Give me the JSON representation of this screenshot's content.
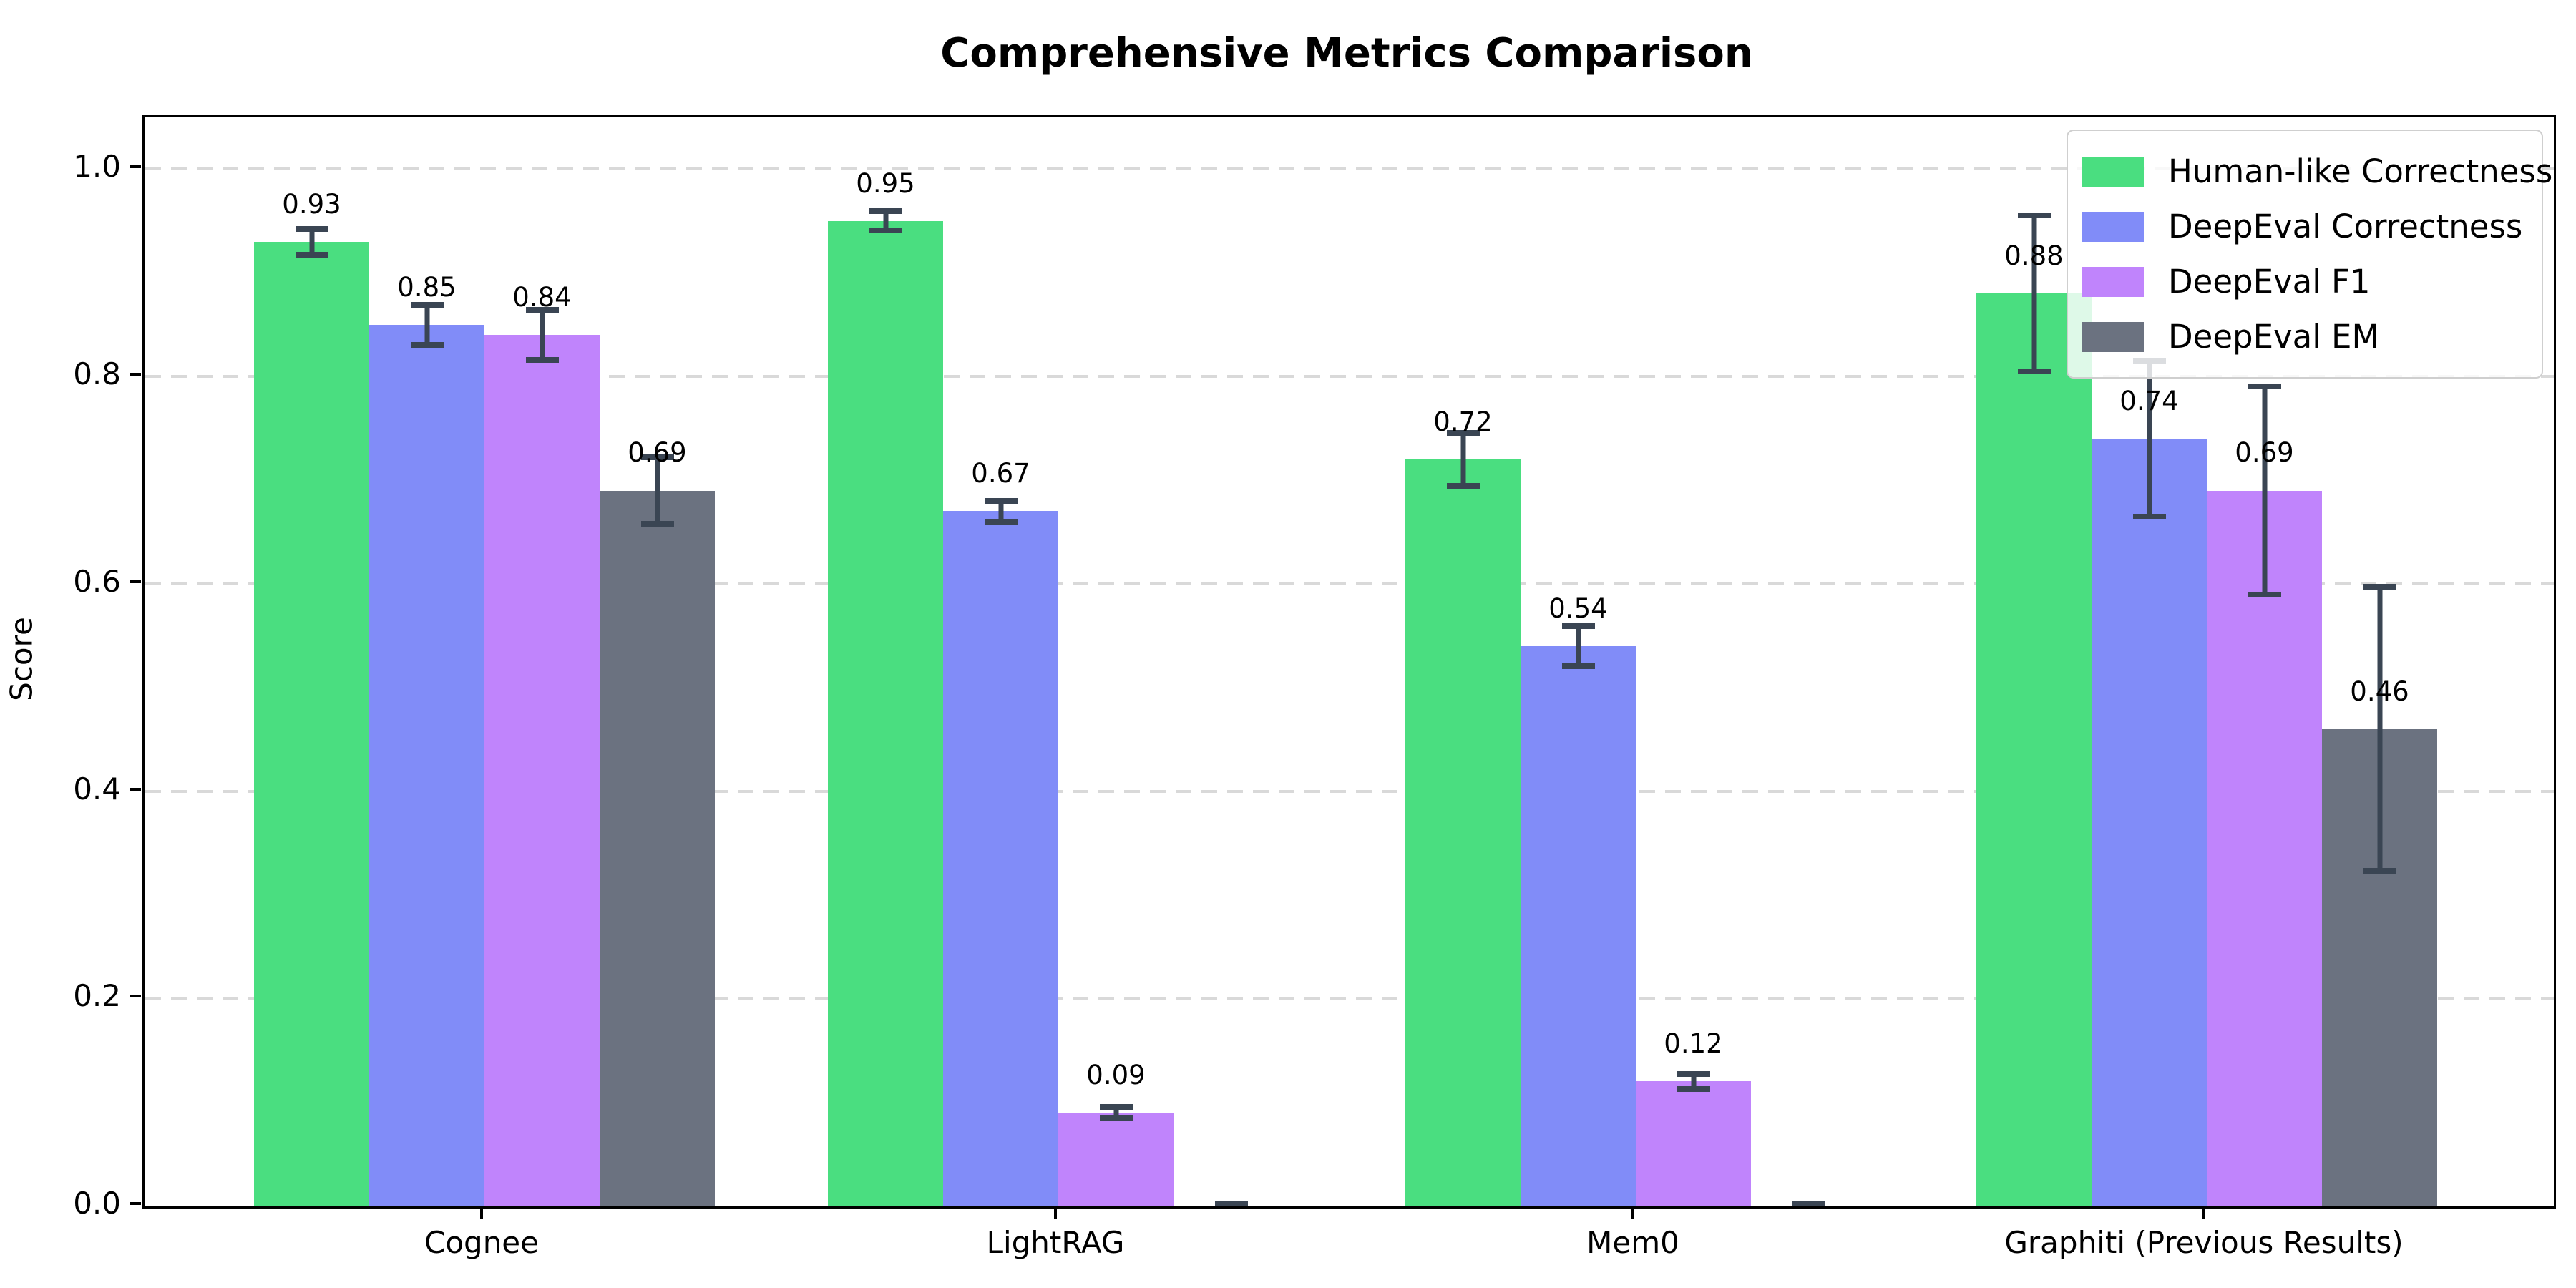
{
  "title": "Comprehensive Metrics Comparison",
  "y_axis_label": "Score",
  "chart_data": {
    "type": "bar",
    "categories": [
      "Cognee",
      "LightRAG",
      "Mem0",
      "Graphiti (Previous Results)"
    ],
    "series": [
      {
        "name": "Human-like Correctness",
        "color": "#4ade80",
        "values": [
          0.93,
          0.95,
          0.72,
          0.88
        ],
        "errors": [
          0.015,
          0.012,
          0.028,
          0.078
        ],
        "labels": [
          "0.93",
          "0.95",
          "0.72",
          "0.88"
        ]
      },
      {
        "name": "DeepEval Correctness",
        "color": "#818cf8",
        "values": [
          0.85,
          0.67,
          0.54,
          0.74
        ],
        "errors": [
          0.022,
          0.013,
          0.022,
          0.078
        ],
        "labels": [
          "0.85",
          "0.67",
          "0.54",
          "0.74"
        ]
      },
      {
        "name": "DeepEval F1",
        "color": "#c084fc",
        "values": [
          0.84,
          0.09,
          0.12,
          0.69
        ],
        "errors": [
          0.027,
          0.008,
          0.01,
          0.103
        ],
        "labels": [
          "0.84",
          "0.09",
          "0.12",
          "0.69"
        ]
      },
      {
        "name": "DeepEval EM",
        "color": "#6b7280",
        "values": [
          0.69,
          0.0,
          0.0,
          0.46
        ],
        "errors": [
          0.035,
          0.005,
          0.005,
          0.14
        ],
        "labels": [
          "0.69",
          null,
          null,
          "0.46"
        ]
      }
    ],
    "yticks": [
      "0.0",
      "0.2",
      "0.4",
      "0.6",
      "0.8",
      "1.0"
    ],
    "ylim": [
      0,
      1.05
    ],
    "grid": "horizontal-dashed",
    "legend_position": "upper-right",
    "error_bar_color": "#3a4553",
    "gridline_color": "#d9d9d9"
  }
}
